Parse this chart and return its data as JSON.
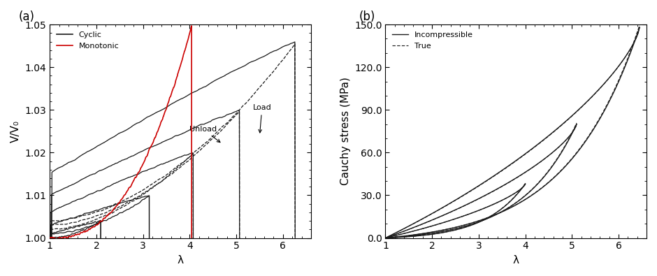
{
  "fig_width": 9.4,
  "fig_height": 3.95,
  "dpi": 100,
  "background_color": "#ffffff",
  "panel_a": {
    "xlabel": "λ",
    "ylabel": "V/V₀",
    "xlim": [
      1.0,
      6.6
    ],
    "ylim": [
      1.0,
      1.05
    ],
    "yticks": [
      1.0,
      1.01,
      1.02,
      1.03,
      1.04,
      1.05
    ],
    "xticks": [
      1.0,
      2.0,
      3.0,
      4.0,
      5.0,
      6.0
    ],
    "legend_cyclic": "Cyclic",
    "legend_monotonic": "Monotonic",
    "annotation_unload": "Unload",
    "annotation_load": "Load",
    "cyclic_color": "#1a1a1a",
    "monotonic_color": "#cc0000"
  },
  "panel_b": {
    "xlabel": "λ",
    "ylabel": "Cauchy stress (MPa)",
    "xlim": [
      1.0,
      6.6
    ],
    "ylim": [
      0.0,
      150.0
    ],
    "yticks": [
      0.0,
      30.0,
      60.0,
      90.0,
      120.0,
      150.0
    ],
    "xticks": [
      1.0,
      2.0,
      3.0,
      4.0,
      5.0,
      6.0
    ],
    "legend_incompressible": "Incompressible",
    "legend_true": "True",
    "line_color": "#1a1a1a"
  }
}
